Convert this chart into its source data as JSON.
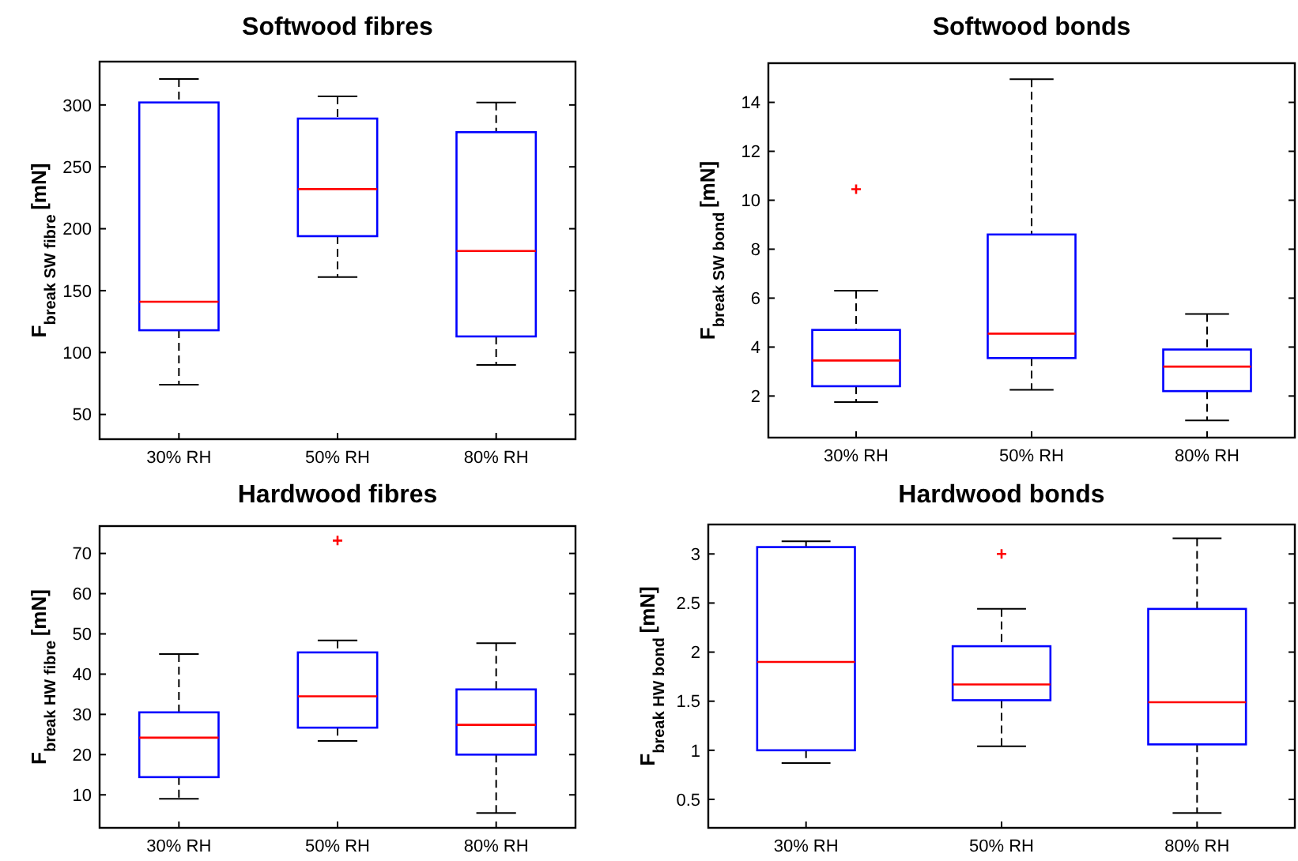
{
  "chart_data": [
    {
      "type": "box",
      "title": "Softwood fibres",
      "ylabel": "F$_{break SW fibre}$ [mN]",
      "categories": [
        "30% RH",
        "50% RH",
        "80% RH"
      ],
      "ylim": [
        30,
        335
      ],
      "yticks": [
        50,
        100,
        150,
        200,
        250,
        300
      ],
      "series": [
        {
          "color": "#0000ff",
          "boxes": [
            {
              "low": 74,
              "q1": 118,
              "median": 141,
              "q3": 302,
              "high": 321
            },
            {
              "low": 161,
              "q1": 194,
              "median": 232,
              "q3": 289,
              "high": 307
            },
            {
              "low": 90,
              "q1": 113,
              "median": 182,
              "q3": 278,
              "high": 302
            }
          ]
        }
      ]
    },
    {
      "type": "box",
      "title": "Softwood bonds",
      "ylabel": "F$_{break SW bond}$ [mN]",
      "categories": [
        "30% RH",
        "50% RH",
        "80% RH"
      ],
      "ylim": [
        0.3,
        15.6
      ],
      "yticks": [
        2,
        4,
        6,
        8,
        10,
        12,
        14
      ],
      "series": [
        {
          "color": "#0000ff",
          "boxes": [
            {
              "low": 1.75,
              "q1": 2.4,
              "median": 3.45,
              "q3": 4.7,
              "high": 6.3,
              "outliers": [
                10.45
              ]
            },
            {
              "low": 2.25,
              "q1": 3.55,
              "median": 4.55,
              "q3": 8.6,
              "high": 14.95
            },
            {
              "low": 1.0,
              "q1": 2.2,
              "median": 3.2,
              "q3": 3.9,
              "high": 5.35
            }
          ]
        }
      ]
    },
    {
      "type": "box",
      "title": "Hardwood fibres",
      "ylabel": "F$_{break HW fibre}$ [mN]",
      "categories": [
        "30% RH",
        "50% RH",
        "80% RH"
      ],
      "ylim": [
        1.8,
        76.8
      ],
      "yticks": [
        10,
        20,
        30,
        40,
        50,
        60,
        70
      ],
      "series": [
        {
          "color": "#0000ff",
          "boxes": [
            {
              "low": 9,
              "q1": 14.4,
              "median": 24.2,
              "q3": 30.5,
              "high": 45
            },
            {
              "low": 23.4,
              "q1": 26.7,
              "median": 34.5,
              "q3": 45.4,
              "high": 48.4,
              "outliers": [
                73.2
              ]
            },
            {
              "low": 5.5,
              "q1": 20,
              "median": 27.4,
              "q3": 36.2,
              "high": 47.7
            }
          ]
        }
      ]
    },
    {
      "type": "box",
      "title": "Hardwood bonds",
      "ylabel": "F$_{break HW bond}$ [mN]",
      "categories": [
        "30% RH",
        "50% RH",
        "80% RH"
      ],
      "ylim": [
        0.21,
        3.3
      ],
      "yticks": [
        {
          "value": 0.5,
          "label": "0.5"
        },
        {
          "value": 1,
          "label": "1"
        },
        {
          "value": 1.5,
          "label": "1.5"
        },
        {
          "value": 2,
          "label": "2"
        },
        {
          "value": 2.5,
          "label": "2.5"
        },
        {
          "value": 3,
          "label": "3"
        }
      ],
      "series": [
        {
          "color": "#0000ff",
          "boxes": [
            {
              "low": 0.87,
              "q1": 1.0,
              "median": 1.9,
              "q3": 3.07,
              "high": 3.13
            },
            {
              "low": 1.04,
              "q1": 1.51,
              "median": 1.67,
              "q3": 2.06,
              "high": 2.44,
              "outliers": [
                3.0
              ]
            },
            {
              "low": 0.36,
              "q1": 1.06,
              "median": 1.49,
              "q3": 2.44,
              "high": 3.16
            }
          ]
        }
      ]
    }
  ]
}
